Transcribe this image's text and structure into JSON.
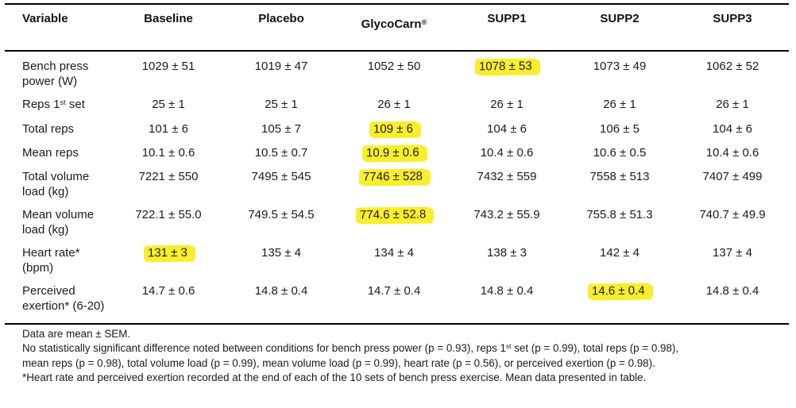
{
  "highlight_color": "#f8ee2c",
  "table": {
    "columns": [
      {
        "label": "Variable"
      },
      {
        "label": "Baseline"
      },
      {
        "label": "Placebo"
      },
      {
        "label": "GlycoCarn^{®}"
      },
      {
        "label": "SUPP1"
      },
      {
        "label": "SUPP2"
      },
      {
        "label": "SUPP3"
      }
    ],
    "rows": [
      {
        "label": "Bench press power (W)",
        "values": [
          "1029 ± 51",
          "1019 ± 47",
          "1052 ± 50",
          "1078 ± 53",
          "1073 ± 49",
          "1062 ± 52"
        ],
        "highlight": 3
      },
      {
        "label": "Reps 1^{st} set",
        "values": [
          "25 ± 1",
          "25 ± 1",
          "26 ± 1",
          "26 ± 1",
          "26 ± 1",
          "26 ± 1"
        ],
        "highlight": null
      },
      {
        "label": "Total reps",
        "values": [
          "101 ± 6",
          "105 ± 7",
          "109 ± 6",
          "104 ± 6",
          "106 ± 5",
          "104 ± 6"
        ],
        "highlight": 2
      },
      {
        "label": "Mean reps",
        "values": [
          "10.1 ± 0.6",
          "10.5 ± 0.7",
          "10.9 ± 0.6",
          "10.4 ± 0.6",
          "10.6 ± 0.5",
          "10.4 ± 0.6"
        ],
        "highlight": 2
      },
      {
        "label": "Total volume load (kg)",
        "values": [
          "7221 ± 550",
          "7495 ± 545",
          "7746 ± 528",
          "7432 ± 559",
          "7558 ± 513",
          "7407 ± 499"
        ],
        "highlight": 2
      },
      {
        "label": "Mean volume load (kg)",
        "values": [
          "722.1 ± 55.0",
          "749.5 ± 54.5",
          "774.6 ± 52.8",
          "743.2 ± 55.9",
          "755.8 ± 51.3",
          "740.7 ± 49.9"
        ],
        "highlight": 2
      },
      {
        "label": "Heart rate* (bpm)",
        "values": [
          "131 ± 3",
          "135 ± 4",
          "134 ± 4",
          "138 ± 3",
          "142 ± 4",
          "137 ± 4"
        ],
        "highlight": 0
      },
      {
        "label": "Perceived exertion* (6-20)",
        "values": [
          "14.7 ± 0.6",
          "14.8 ± 0.4",
          "14.7 ± 0.4",
          "14.8 ± 0.4",
          "14.6 ± 0.4",
          "14.8 ± 0.4"
        ],
        "highlight": 4
      }
    ],
    "footnotes": [
      "Data are mean ± SEM.",
      "No statistically significant difference noted between conditions for bench press power (p = 0.93), reps 1^{st} set (p = 0.99), total reps (p = 0.98),",
      "mean reps (p = 0.98), total volume load (p = 0.99), mean volume load (p = 0.99), heart rate (p = 0.56), or perceived exertion (p = 0.98).",
      "*Heart rate and perceived exertion recorded at the end of each of the 10 sets of bench press exercise. Mean data presented in table."
    ]
  }
}
